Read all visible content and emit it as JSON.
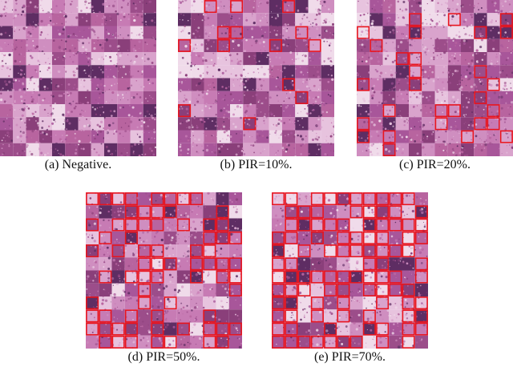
{
  "figure": {
    "panels": [
      {
        "id": "a",
        "caption": "(a)  Negative.",
        "positive_fraction": 0.0
      },
      {
        "id": "b",
        "caption": "(b)  PIR=10%.",
        "positive_fraction": 0.1
      },
      {
        "id": "c",
        "caption": "(c)  PIR=20%.",
        "positive_fraction": 0.2
      },
      {
        "id": "d",
        "caption": "(d)  PIR=50%.",
        "positive_fraction": 0.5
      },
      {
        "id": "e",
        "caption": "(e)  PIR=70%.",
        "positive_fraction": 0.7
      }
    ],
    "grid_size": 12,
    "highlight_color": "#e8141e",
    "tissue_colors": [
      "#c77bb4",
      "#b8649f",
      "#d9a3cc",
      "#9c4d8a",
      "#e7c3de",
      "#8a3f7a",
      "#cf8ec0",
      "#f0dbea",
      "#a8569a",
      "#5e2d63"
    ]
  }
}
